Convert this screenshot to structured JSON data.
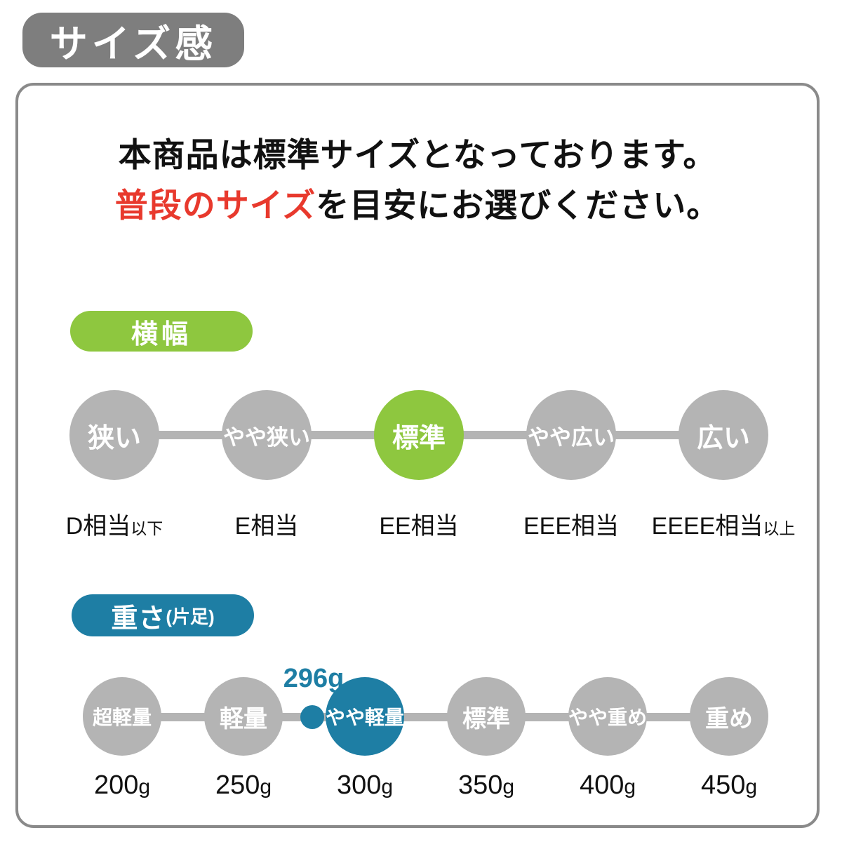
{
  "page_title": "サイズ感",
  "intro": {
    "line1": "本商品は標準サイズとなっております。",
    "line2_highlight": "普段のサイズ",
    "line2_rest": "を目安にお選びください。"
  },
  "width_section": {
    "badge": "横幅",
    "items": [
      {
        "circle": "狭い",
        "label": "D相当",
        "label_suffix": "以下",
        "active": false
      },
      {
        "circle": "やや狭い",
        "label": "E相当",
        "label_suffix": "",
        "active": false
      },
      {
        "circle": "標準",
        "label": "EE相当",
        "label_suffix": "",
        "active": true
      },
      {
        "circle": "やや広い",
        "label": "EEE相当",
        "label_suffix": "",
        "active": false
      },
      {
        "circle": "広い",
        "label": "EEEE相当",
        "label_suffix": "以上",
        "active": false
      }
    ]
  },
  "weight_section": {
    "badge": "重さ",
    "badge_suffix": "(片足)",
    "marker_value": "296g",
    "items": [
      {
        "circle": "超軽量",
        "label": "200",
        "unit": "g",
        "active": false
      },
      {
        "circle": "軽量",
        "label": "250",
        "unit": "g",
        "active": false
      },
      {
        "circle": "やや軽量",
        "label": "300",
        "unit": "g",
        "active": true
      },
      {
        "circle": "標準",
        "label": "350",
        "unit": "g",
        "active": false
      },
      {
        "circle": "やや重め",
        "label": "400",
        "unit": "g",
        "active": false
      },
      {
        "circle": "重め",
        "label": "450",
        "unit": "g",
        "active": false
      }
    ]
  },
  "colors": {
    "accent_green": "#8ec73f",
    "accent_teal": "#1e7ea4",
    "scale_gray": "#b4b4b4",
    "title_gray": "#7e7e7e",
    "panel_border_gray": "#8a8a8a",
    "highlight_red": "#e8392d",
    "text_black": "#111111"
  }
}
